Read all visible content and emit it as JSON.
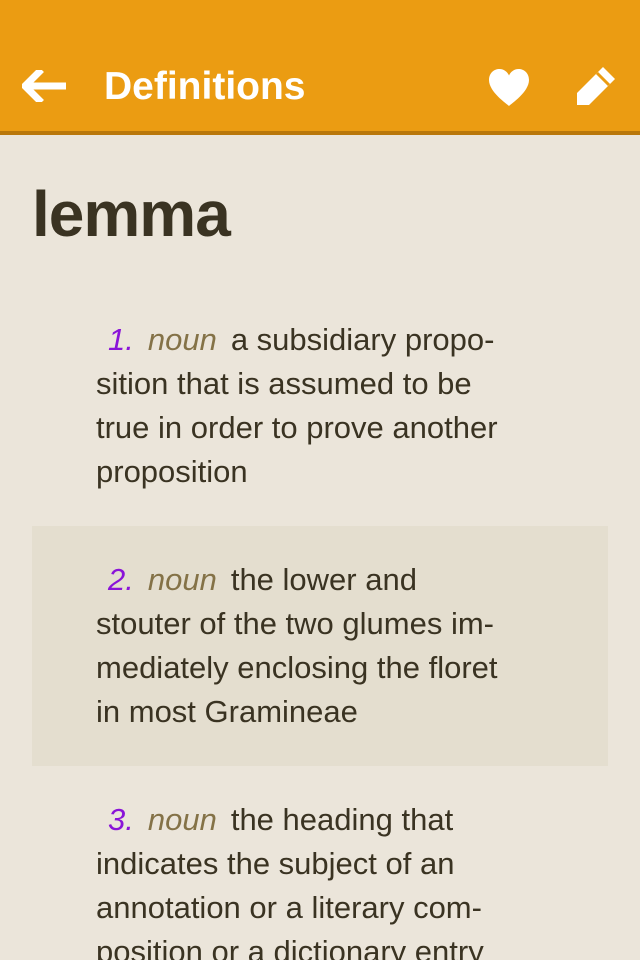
{
  "navbar": {
    "title": "Definitions",
    "back_icon": "arrow-left-icon",
    "favorite_icon": "heart-icon",
    "edit_icon": "pencil-icon",
    "bg_color": "#eb9c12",
    "text_color": "#ffffff"
  },
  "entry": {
    "word": "lemma",
    "definitions": [
      {
        "number": "1.",
        "pos": "noun",
        "lines": [
          "a subsidiary propo-",
          "sition that is assumed to be",
          "true in order to prove another",
          "proposition"
        ]
      },
      {
        "number": "2.",
        "pos": "noun",
        "lines": [
          "the lower and",
          "stouter of the two glumes im-",
          "mediately enclosing the floret",
          "in most Gramineae"
        ]
      },
      {
        "number": "3.",
        "pos": "noun",
        "lines": [
          "the heading that",
          "indicates the subject of an",
          "annotation or a literary com-",
          "position or a dictionary entry"
        ]
      }
    ]
  },
  "colors": {
    "background": "#ebe5da",
    "shaded_row": "#e4decf",
    "number": "#8a14d8",
    "part_of_speech": "#847247",
    "text": "#3a3322"
  }
}
